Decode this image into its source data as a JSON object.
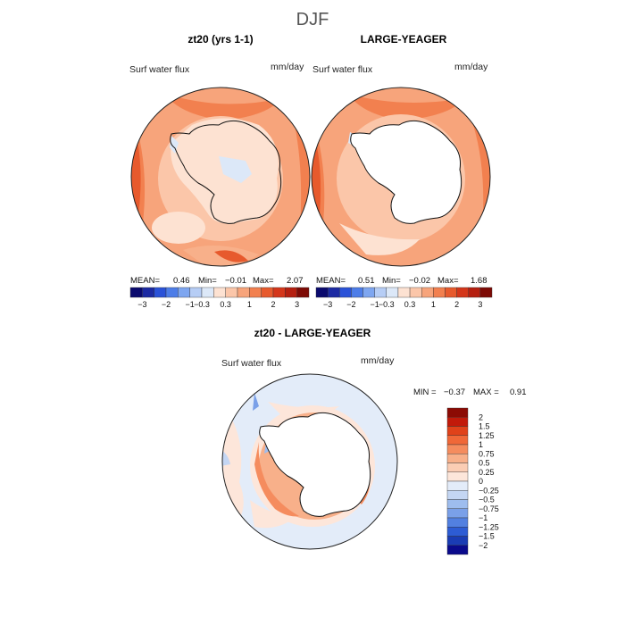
{
  "season": "DJF",
  "panels": [
    {
      "title": "zt20 (yrs 1-1)",
      "variable": "Surf water flux",
      "units": "mm/day",
      "stats": {
        "mean_label": "MEAN=",
        "mean": "0.46",
        "min_label": "Min=",
        "min": "−0.01",
        "max_label": "Max=",
        "max": "2.07"
      }
    },
    {
      "title": "LARGE-YEAGER",
      "variable": "Surf water flux",
      "units": "mm/day",
      "stats": {
        "mean_label": "MEAN=",
        "mean": "0.51",
        "min_label": "Min=",
        "min": "−0.02",
        "max_label": "Max=",
        "max": "1.68"
      }
    }
  ],
  "top_colorbar": {
    "colors": [
      "#0a0a6e",
      "#1c2aa3",
      "#2a52d8",
      "#4d7de8",
      "#7ea6f0",
      "#b6cdf5",
      "#dce8f8",
      "#fde2d2",
      "#fbc6a9",
      "#f7a47b",
      "#f2804f",
      "#e75a2d",
      "#d4361a",
      "#b51f10",
      "#7d0a05"
    ],
    "tick_labels": [
      "−3",
      "−2",
      "−1",
      "−0.3",
      "0.3",
      "1",
      "2",
      "3"
    ]
  },
  "diff_panel": {
    "title": "zt20 - LARGE-YEAGER",
    "variable": "Surf water flux",
    "units": "mm/day",
    "min_label": "MIN =",
    "min": "−0.37",
    "max_label": "MAX =",
    "max": "0.91"
  },
  "diff_colorbar": {
    "colors": [
      "#8c0b04",
      "#c21a0a",
      "#e0421a",
      "#f06838",
      "#f58c5e",
      "#f8b08a",
      "#fbcdb4",
      "#fde6da",
      "#e3ecf9",
      "#c4d6f3",
      "#9ebdee",
      "#7aa0e8",
      "#5280e0",
      "#2d5cd4",
      "#1a3cb4",
      "#0a0a8c"
    ],
    "tick_labels": [
      "2",
      "1.5",
      "1.25",
      "1",
      "0.75",
      "0.5",
      "0.25",
      "0",
      "−0.25",
      "−0.5",
      "−0.75",
      "−1",
      "−1.25",
      "−1.5",
      "−2"
    ]
  }
}
